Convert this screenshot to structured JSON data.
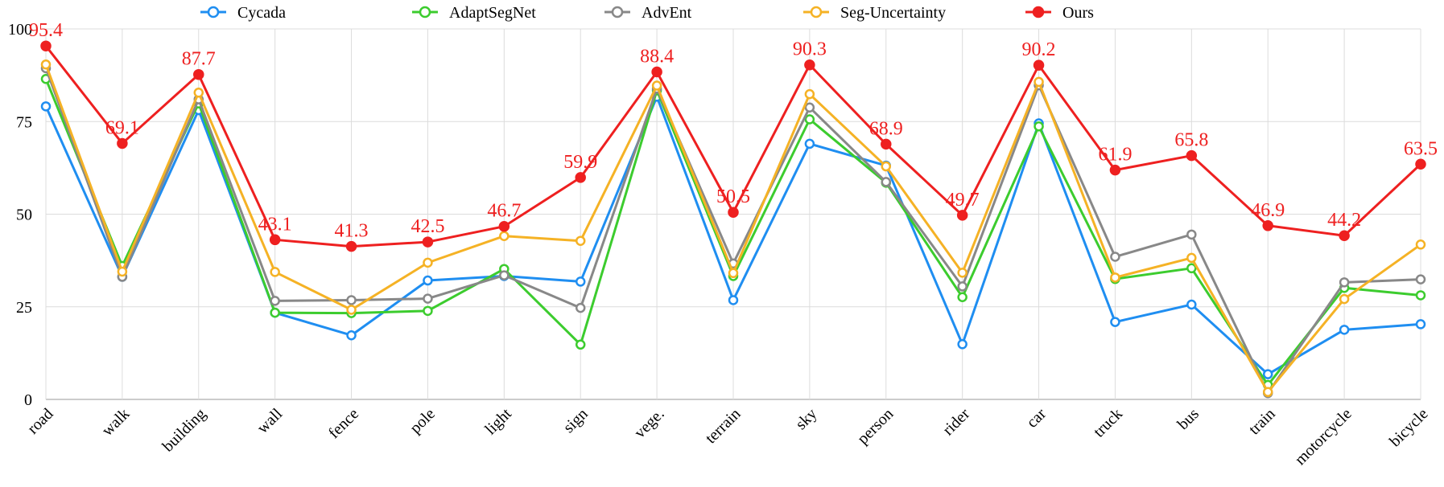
{
  "chart_data": {
    "type": "line",
    "categories": [
      "road",
      "walk",
      "building",
      "wall",
      "fence",
      "pole",
      "light",
      "sign",
      "vege.",
      "terrain",
      "sky",
      "person",
      "rider",
      "car",
      "truck",
      "bus",
      "train",
      "motorcycle",
      "bicycle"
    ],
    "ylim": [
      0,
      100
    ],
    "yticks": [
      0,
      25,
      50,
      75,
      100
    ],
    "grid": true,
    "legend_position": "top",
    "series": [
      {
        "name": "Cycada",
        "color": "#1f8ef1",
        "values": [
          79.1,
          33.1,
          78.1,
          23.4,
          17.3,
          32.1,
          33.3,
          31.8,
          81.7,
          26.8,
          69.0,
          63.1,
          14.9,
          74.5,
          20.9,
          25.6,
          6.8,
          18.8,
          20.3
        ]
      },
      {
        "name": "AdaptSegNet",
        "color": "#3ccc2e",
        "values": [
          86.5,
          36.0,
          79.9,
          23.4,
          23.3,
          23.9,
          35.2,
          14.8,
          83.4,
          33.3,
          75.6,
          58.5,
          27.6,
          73.7,
          32.5,
          35.4,
          3.9,
          30.1,
          28.1
        ]
      },
      {
        "name": "AdvEnt",
        "color": "#888888",
        "values": [
          89.4,
          33.1,
          81.0,
          26.6,
          26.8,
          27.2,
          33.5,
          24.7,
          83.9,
          36.7,
          78.8,
          58.7,
          30.5,
          84.8,
          38.5,
          44.5,
          1.7,
          31.6,
          32.4
        ]
      },
      {
        "name": "Seg-Uncertainty",
        "color": "#f5b225",
        "values": [
          90.4,
          34.5,
          82.8,
          34.4,
          24.2,
          36.9,
          44.1,
          42.8,
          84.7,
          34.1,
          82.4,
          62.9,
          34.2,
          85.7,
          32.9,
          38.2,
          2.0,
          27.1,
          41.8
        ]
      },
      {
        "name": "Ours",
        "color": "#ee2020",
        "filled": true,
        "values": [
          95.4,
          69.1,
          87.7,
          43.1,
          41.3,
          42.5,
          46.7,
          59.9,
          88.4,
          50.5,
          90.3,
          68.9,
          49.7,
          90.2,
          61.9,
          65.8,
          46.9,
          44.2,
          63.5
        ],
        "labels": [
          "95.4",
          "69.1",
          "87.7",
          "43.1",
          "41.3",
          "42.5",
          "46.7",
          "59.9",
          "88.4",
          "50.5",
          "90.3",
          "68.9",
          "49.7",
          "90.2",
          "61.9",
          "65.8",
          "46.9",
          "44.2",
          "63.5"
        ]
      }
    ]
  }
}
